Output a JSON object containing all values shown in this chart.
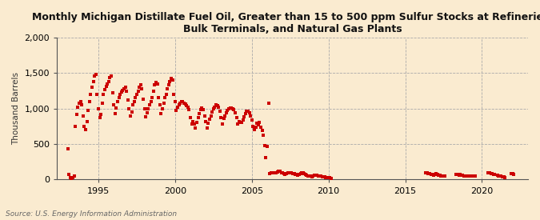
{
  "title": "Monthly Michigan Distillate Fuel Oil, Greater than 15 to 500 ppm Sulfur Stocks at Refineries,\nBulk Terminals, and Natural Gas Plants",
  "ylabel": "Thousand Barrels",
  "source": "Source: U.S. Energy Information Administration",
  "background_color": "#faebd0",
  "dot_color": "#cc0000",
  "grid_color": "#aaaaaa",
  "ylim": [
    0,
    2000
  ],
  "yticks": [
    0,
    500,
    1000,
    1500,
    2000
  ],
  "xticks": [
    1995,
    2000,
    2005,
    2010,
    2015,
    2020
  ],
  "xlim": [
    1992.3,
    2023.0
  ],
  "data": [
    [
      1993.0,
      430
    ],
    [
      1993.083,
      70
    ],
    [
      1993.167,
      30
    ],
    [
      1993.25,
      20
    ],
    [
      1993.333,
      30
    ],
    [
      1993.417,
      50
    ],
    [
      1993.5,
      750
    ],
    [
      1993.583,
      920
    ],
    [
      1993.667,
      1020
    ],
    [
      1993.75,
      1070
    ],
    [
      1993.833,
      1100
    ],
    [
      1993.917,
      1050
    ],
    [
      1994.0,
      900
    ],
    [
      1994.083,
      750
    ],
    [
      1994.167,
      700
    ],
    [
      1994.25,
      820
    ],
    [
      1994.333,
      970
    ],
    [
      1994.417,
      1100
    ],
    [
      1994.5,
      1200
    ],
    [
      1994.583,
      1300
    ],
    [
      1994.667,
      1380
    ],
    [
      1994.75,
      1460
    ],
    [
      1994.833,
      1480
    ],
    [
      1994.917,
      1200
    ],
    [
      1995.0,
      1000
    ],
    [
      1995.083,
      870
    ],
    [
      1995.167,
      920
    ],
    [
      1995.25,
      1080
    ],
    [
      1995.333,
      1200
    ],
    [
      1995.417,
      1270
    ],
    [
      1995.5,
      1310
    ],
    [
      1995.583,
      1350
    ],
    [
      1995.667,
      1380
    ],
    [
      1995.75,
      1440
    ],
    [
      1995.833,
      1460
    ],
    [
      1995.917,
      1220
    ],
    [
      1996.0,
      1050
    ],
    [
      1996.083,
      930
    ],
    [
      1996.167,
      1010
    ],
    [
      1996.25,
      1100
    ],
    [
      1996.333,
      1150
    ],
    [
      1996.417,
      1200
    ],
    [
      1996.5,
      1230
    ],
    [
      1996.583,
      1260
    ],
    [
      1996.667,
      1280
    ],
    [
      1996.75,
      1300
    ],
    [
      1996.833,
      1250
    ],
    [
      1996.917,
      1120
    ],
    [
      1997.0,
      1000
    ],
    [
      1997.083,
      890
    ],
    [
      1997.167,
      950
    ],
    [
      1997.25,
      1050
    ],
    [
      1997.333,
      1100
    ],
    [
      1997.417,
      1150
    ],
    [
      1997.5,
      1200
    ],
    [
      1997.583,
      1250
    ],
    [
      1997.667,
      1300
    ],
    [
      1997.75,
      1330
    ],
    [
      1997.833,
      1280
    ],
    [
      1997.917,
      1130
    ],
    [
      1998.0,
      1000
    ],
    [
      1998.083,
      880
    ],
    [
      1998.167,
      940
    ],
    [
      1998.25,
      1000
    ],
    [
      1998.333,
      1050
    ],
    [
      1998.417,
      1100
    ],
    [
      1998.5,
      1150
    ],
    [
      1998.583,
      1250
    ],
    [
      1998.667,
      1330
    ],
    [
      1998.75,
      1370
    ],
    [
      1998.833,
      1350
    ],
    [
      1998.917,
      1150
    ],
    [
      1999.0,
      1050
    ],
    [
      1999.083,
      930
    ],
    [
      1999.167,
      1000
    ],
    [
      1999.25,
      1080
    ],
    [
      1999.333,
      1150
    ],
    [
      1999.417,
      1200
    ],
    [
      1999.5,
      1280
    ],
    [
      1999.583,
      1330
    ],
    [
      1999.667,
      1380
    ],
    [
      1999.75,
      1420
    ],
    [
      1999.833,
      1400
    ],
    [
      1999.917,
      1200
    ],
    [
      2000.0,
      1100
    ],
    [
      2000.083,
      970
    ],
    [
      2000.167,
      1020
    ],
    [
      2000.25,
      1050
    ],
    [
      2000.333,
      1070
    ],
    [
      2000.417,
      1100
    ],
    [
      2000.5,
      1100
    ],
    [
      2000.583,
      1080
    ],
    [
      2000.667,
      1060
    ],
    [
      2000.75,
      1040
    ],
    [
      2000.833,
      1020
    ],
    [
      2000.917,
      980
    ],
    [
      2001.0,
      870
    ],
    [
      2001.083,
      780
    ],
    [
      2001.167,
      820
    ],
    [
      2001.25,
      780
    ],
    [
      2001.333,
      730
    ],
    [
      2001.417,
      800
    ],
    [
      2001.5,
      870
    ],
    [
      2001.583,
      930
    ],
    [
      2001.667,
      980
    ],
    [
      2001.75,
      1010
    ],
    [
      2001.833,
      980
    ],
    [
      2001.917,
      900
    ],
    [
      2002.0,
      820
    ],
    [
      2002.083,
      730
    ],
    [
      2002.167,
      790
    ],
    [
      2002.25,
      850
    ],
    [
      2002.333,
      900
    ],
    [
      2002.417,
      950
    ],
    [
      2002.5,
      1000
    ],
    [
      2002.583,
      1020
    ],
    [
      2002.667,
      1050
    ],
    [
      2002.75,
      1040
    ],
    [
      2002.833,
      1020
    ],
    [
      2002.917,
      960
    ],
    [
      2003.0,
      870
    ],
    [
      2003.083,
      780
    ],
    [
      2003.167,
      860
    ],
    [
      2003.25,
      900
    ],
    [
      2003.333,
      940
    ],
    [
      2003.417,
      970
    ],
    [
      2003.5,
      1000
    ],
    [
      2003.583,
      1010
    ],
    [
      2003.667,
      1010
    ],
    [
      2003.75,
      1000
    ],
    [
      2003.833,
      980
    ],
    [
      2003.917,
      940
    ],
    [
      2004.0,
      870
    ],
    [
      2004.083,
      780
    ],
    [
      2004.167,
      820
    ],
    [
      2004.25,
      800
    ],
    [
      2004.333,
      810
    ],
    [
      2004.417,
      840
    ],
    [
      2004.5,
      880
    ],
    [
      2004.583,
      930
    ],
    [
      2004.667,
      960
    ],
    [
      2004.75,
      960
    ],
    [
      2004.833,
      940
    ],
    [
      2004.917,
      890
    ],
    [
      2005.0,
      840
    ],
    [
      2005.083,
      750
    ],
    [
      2005.167,
      700
    ],
    [
      2005.25,
      740
    ],
    [
      2005.333,
      790
    ],
    [
      2005.417,
      770
    ],
    [
      2005.5,
      800
    ],
    [
      2005.583,
      740
    ],
    [
      2005.667,
      690
    ],
    [
      2005.75,
      630
    ],
    [
      2005.833,
      480
    ],
    [
      2005.917,
      310
    ],
    [
      2006.0,
      470
    ],
    [
      2006.083,
      1070
    ],
    [
      2006.167,
      80
    ],
    [
      2006.25,
      90
    ],
    [
      2006.333,
      100
    ],
    [
      2006.417,
      100
    ],
    [
      2006.5,
      95
    ],
    [
      2006.583,
      100
    ],
    [
      2006.667,
      110
    ],
    [
      2006.75,
      120
    ],
    [
      2006.833,
      120
    ],
    [
      2006.917,
      100
    ],
    [
      2007.0,
      90
    ],
    [
      2007.083,
      80
    ],
    [
      2007.167,
      75
    ],
    [
      2007.25,
      85
    ],
    [
      2007.333,
      95
    ],
    [
      2007.417,
      100
    ],
    [
      2007.5,
      100
    ],
    [
      2007.583,
      90
    ],
    [
      2007.667,
      85
    ],
    [
      2007.75,
      80
    ],
    [
      2007.833,
      75
    ],
    [
      2007.917,
      70
    ],
    [
      2008.0,
      65
    ],
    [
      2008.083,
      75
    ],
    [
      2008.167,
      85
    ],
    [
      2008.25,
      95
    ],
    [
      2008.333,
      90
    ],
    [
      2008.417,
      80
    ],
    [
      2008.5,
      70
    ],
    [
      2008.583,
      60
    ],
    [
      2008.667,
      55
    ],
    [
      2008.75,
      50
    ],
    [
      2008.833,
      45
    ],
    [
      2008.917,
      40
    ],
    [
      2009.0,
      55
    ],
    [
      2009.083,
      65
    ],
    [
      2009.167,
      65
    ],
    [
      2009.25,
      60
    ],
    [
      2009.333,
      50
    ],
    [
      2009.417,
      45
    ],
    [
      2009.5,
      45
    ],
    [
      2009.583,
      40
    ],
    [
      2009.667,
      40
    ],
    [
      2009.75,
      35
    ],
    [
      2009.833,
      30
    ],
    [
      2009.917,
      25
    ],
    [
      2010.0,
      25
    ],
    [
      2010.083,
      25
    ],
    [
      2010.167,
      20
    ],
    [
      2016.333,
      95
    ],
    [
      2016.417,
      90
    ],
    [
      2016.5,
      85
    ],
    [
      2016.583,
      80
    ],
    [
      2016.667,
      75
    ],
    [
      2016.75,
      70
    ],
    [
      2016.833,
      65
    ],
    [
      2016.917,
      75
    ],
    [
      2017.0,
      80
    ],
    [
      2017.083,
      75
    ],
    [
      2017.167,
      65
    ],
    [
      2017.25,
      60
    ],
    [
      2017.333,
      55
    ],
    [
      2017.417,
      50
    ],
    [
      2017.5,
      55
    ],
    [
      2017.583,
      50
    ],
    [
      2018.333,
      75
    ],
    [
      2018.417,
      70
    ],
    [
      2018.5,
      65
    ],
    [
      2018.583,
      70
    ],
    [
      2018.667,
      65
    ],
    [
      2018.75,
      60
    ],
    [
      2018.833,
      55
    ],
    [
      2018.917,
      50
    ],
    [
      2019.0,
      55
    ],
    [
      2019.083,
      50
    ],
    [
      2019.167,
      45
    ],
    [
      2019.25,
      50
    ],
    [
      2019.333,
      55
    ],
    [
      2019.417,
      55
    ],
    [
      2019.5,
      50
    ],
    [
      2019.583,
      45
    ],
    [
      2020.417,
      95
    ],
    [
      2020.5,
      90
    ],
    [
      2020.583,
      85
    ],
    [
      2020.667,
      80
    ],
    [
      2020.75,
      75
    ],
    [
      2020.833,
      70
    ],
    [
      2021.0,
      60
    ],
    [
      2021.083,
      55
    ],
    [
      2021.167,
      50
    ],
    [
      2021.25,
      45
    ],
    [
      2021.333,
      40
    ],
    [
      2021.417,
      35
    ],
    [
      2021.5,
      30
    ],
    [
      2021.917,
      80
    ],
    [
      2022.0,
      85
    ],
    [
      2022.083,
      75
    ]
  ]
}
